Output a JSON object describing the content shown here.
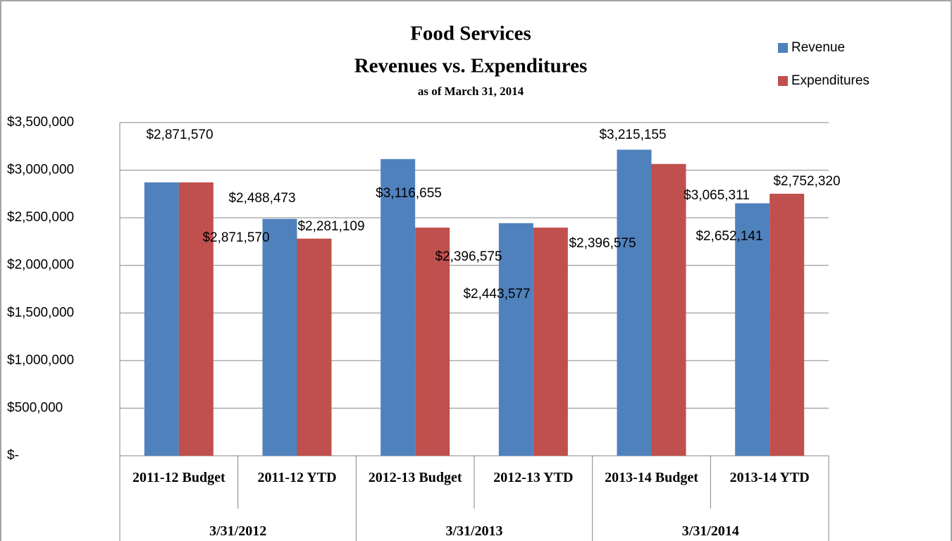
{
  "chart_data": {
    "type": "bar",
    "title": "Food Services",
    "subtitle": "Revenues vs. Expenditures",
    "note": "as of March 31, 2014",
    "categories": [
      "2011-12 Budget",
      "2011-12 YTD",
      "2012-13 Budget",
      "2012-13 YTD",
      "2013-14 Budget",
      "2013-14 YTD"
    ],
    "category_groups": [
      "3/31/2012",
      "3/31/2013",
      "3/31/2014"
    ],
    "series": [
      {
        "name": "Revenue",
        "color": "#4f81bd",
        "values": [
          2871570,
          2488473,
          3116655,
          2443577,
          3215155,
          2652141
        ],
        "value_labels": [
          "$2,871,570",
          "$2,488,473",
          "$3,116,655",
          "$2,443,577",
          "$3,215,155",
          "$2,652,141"
        ]
      },
      {
        "name": "Expenditures",
        "color": "#c0504d",
        "values": [
          2871570,
          2281109,
          2396575,
          2396575,
          3065311,
          2752320
        ],
        "value_labels": [
          "$2,871,570",
          "$2,281,109",
          "$2,396,575",
          "$2,396,575",
          "$3,065,311",
          "$2,752,320"
        ]
      }
    ],
    "ylim": [
      0,
      3500000
    ],
    "yticks": [
      {
        "value": 0,
        "label": "$-"
      },
      {
        "value": 500000,
        "label": "$500,000"
      },
      {
        "value": 1000000,
        "label": "$1,000,000"
      },
      {
        "value": 1500000,
        "label": "$1,500,000"
      },
      {
        "value": 2000000,
        "label": "$2,000,000"
      },
      {
        "value": 2500000,
        "label": "$2,500,000"
      },
      {
        "value": 3000000,
        "label": "$3,000,000"
      },
      {
        "value": 3500000,
        "label": "$3,500,000"
      }
    ],
    "grid": true,
    "legend": "top-right"
  }
}
